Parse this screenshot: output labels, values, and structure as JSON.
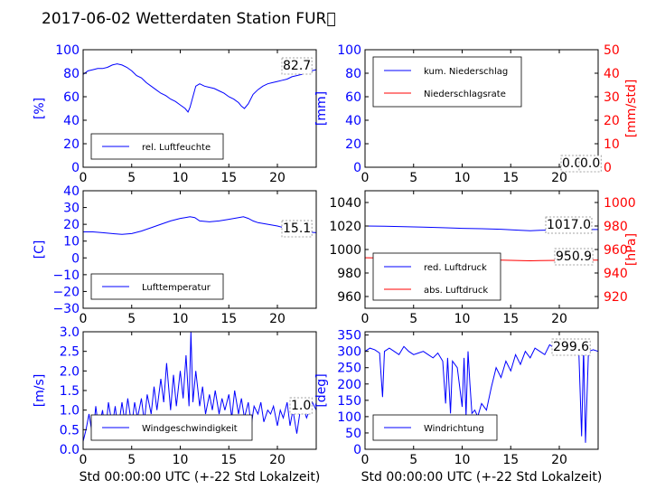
{
  "figure_title": "2017-06-02 Wetterdaten Station FUR\u0000",
  "colors": {
    "left_axis": "#0000ff",
    "right_axis": "#ff0000",
    "black": "#000000"
  },
  "chart_data": [
    {
      "id": "humidity",
      "type": "line",
      "xlim": [
        0,
        24
      ],
      "ylim": [
        0,
        100
      ],
      "xticks": [
        "0",
        "5",
        "10",
        "15",
        "20"
      ],
      "yticks": [
        "0",
        "20",
        "40",
        "60",
        "80",
        "100"
      ],
      "ylabel": "[%]",
      "xlabel": "",
      "last_value": "82.7",
      "legend": [
        {
          "label": "rel. Luftfeuchte",
          "color": "#0000ff"
        }
      ],
      "series": [
        {
          "name": "rel. Luftfeuchte",
          "color": "#0000ff",
          "x": [
            0,
            0.5,
            1,
            1.5,
            2,
            2.5,
            3,
            3.5,
            4,
            4.5,
            5,
            5.5,
            6,
            6.5,
            7,
            7.5,
            8,
            8.5,
            9,
            9.5,
            10,
            10.5,
            10.8,
            11,
            11.3,
            11.6,
            12,
            12.5,
            13,
            13.5,
            14,
            14.5,
            15,
            15.5,
            16,
            16.3,
            16.6,
            17,
            17.5,
            18,
            18.5,
            19,
            19.5,
            20,
            20.5,
            21,
            21.5,
            22,
            22.5,
            23,
            23.5,
            24
          ],
          "y": [
            79,
            82,
            83,
            84,
            84,
            85,
            87,
            88,
            87,
            85,
            82,
            78,
            76,
            72,
            69,
            66,
            63,
            61,
            58,
            56,
            53,
            50,
            47,
            51,
            60,
            69,
            71,
            69,
            68,
            67,
            65,
            63,
            60,
            58,
            55,
            52,
            50,
            54,
            62,
            66,
            69,
            71,
            72,
            73,
            74,
            75,
            77,
            78,
            79,
            81,
            82,
            83
          ]
        }
      ]
    },
    {
      "id": "rain",
      "type": "line",
      "xlim": [
        0,
        24
      ],
      "ylim": [
        0,
        100
      ],
      "ylim_right": [
        0,
        50
      ],
      "xticks": [
        "0",
        "5",
        "10",
        "15",
        "20"
      ],
      "yticks": [
        "0",
        "20",
        "40",
        "60",
        "80",
        "100"
      ],
      "yticks_right": [
        "0",
        "10",
        "20",
        "30",
        "40",
        "50"
      ],
      "ylabel": "[mm]",
      "ylabel_right": "[mm/std]",
      "last_value": "0.0",
      "last_value_right": "0.0",
      "legend": [
        {
          "label": "kum. Niederschlag",
          "color": "#0000ff"
        },
        {
          "label": "Niederschlagsrate",
          "color": "#ff0000"
        }
      ],
      "series": [
        {
          "name": "kum. Niederschlag",
          "color": "#0000ff",
          "x": [
            0,
            24
          ],
          "y": [
            0,
            0
          ]
        },
        {
          "name": "Niederschlagsrate",
          "color": "#ff0000",
          "x": [
            0,
            24
          ],
          "y": [
            0,
            0
          ],
          "axis": "right"
        }
      ]
    },
    {
      "id": "temperature",
      "type": "line",
      "xlim": [
        0,
        24
      ],
      "ylim": [
        -30,
        40
      ],
      "xticks": [
        "0",
        "5",
        "10",
        "15",
        "20"
      ],
      "yticks": [
        "−30",
        "−20",
        "−10",
        "0",
        "10",
        "20",
        "30",
        "40"
      ],
      "ylabel": "[C]",
      "last_value": "15.1",
      "legend": [
        {
          "label": "Lufttemperatur",
          "color": "#0000ff"
        }
      ],
      "series": [
        {
          "name": "Lufttemperatur",
          "color": "#0000ff",
          "x": [
            0,
            1,
            2,
            3,
            4,
            5,
            6,
            7,
            8,
            9,
            10,
            10.5,
            11,
            11.5,
            12,
            13,
            14,
            15,
            16,
            16.5,
            17,
            17.5,
            18,
            19,
            20,
            21,
            22,
            23,
            24
          ],
          "y": [
            15.5,
            15.5,
            15,
            14.5,
            14,
            14.5,
            16,
            18,
            20,
            22,
            23.5,
            24,
            24.5,
            24,
            22,
            21.5,
            22,
            23,
            24,
            24.5,
            23.5,
            22,
            21,
            20,
            19,
            17.5,
            16.5,
            15.5,
            15
          ]
        }
      ]
    },
    {
      "id": "pressure",
      "type": "line",
      "xlim": [
        0,
        24
      ],
      "ylim": [
        950,
        1050
      ],
      "ylim_right": [
        910,
        1010
      ],
      "xticks": [
        "0",
        "5",
        "10",
        "15",
        "20"
      ],
      "yticks": [
        "960",
        "980",
        "1000",
        "1020",
        "1040"
      ],
      "yticks_right": [
        "920",
        "940",
        "960",
        "980",
        "1000"
      ],
      "ylabel_right": "[hPa]",
      "last_value": "1017.0",
      "last_value_right": "950.9",
      "legend": [
        {
          "label": "red. Luftdruck",
          "color": "#0000ff"
        },
        {
          "label": "abs. Luftdruck",
          "color": "#ff0000"
        }
      ],
      "series": [
        {
          "name": "red. Luftdruck",
          "color": "#0000ff",
          "x": [
            0,
            2,
            4,
            6,
            8,
            10,
            12,
            14,
            16,
            17,
            18,
            20,
            22,
            24
          ],
          "y": [
            1020,
            1019.8,
            1019.4,
            1019,
            1018.5,
            1018,
            1017.7,
            1017.2,
            1016.4,
            1016,
            1016.3,
            1016.8,
            1017,
            1017
          ]
        },
        {
          "name": "abs. Luftdruck",
          "color": "#ff0000",
          "axis": "right",
          "x": [
            0,
            2,
            4,
            6,
            8,
            10,
            12,
            14,
            16,
            17,
            18,
            20,
            22,
            24
          ],
          "y": [
            953,
            952.8,
            952.5,
            952.2,
            951.8,
            951.5,
            951.3,
            951,
            950.6,
            950.4,
            950.6,
            950.8,
            950.9,
            950.9
          ]
        }
      ]
    },
    {
      "id": "wind",
      "type": "line",
      "xlim": [
        0,
        24
      ],
      "ylim": [
        0,
        3
      ],
      "xticks": [
        "0",
        "5",
        "10",
        "15",
        "20"
      ],
      "yticks": [
        "0.0",
        "0.5",
        "1.0",
        "1.5",
        "2.0",
        "2.5",
        "3.0"
      ],
      "ylabel": "[m/s]",
      "xlabel": "Std 00:00:00 UTC (+-22 Std Lokalzeit)",
      "last_value": "1.0",
      "legend": [
        {
          "label": "Windgeschwindigkeit",
          "color": "#0000ff"
        }
      ],
      "series": [
        {
          "name": "Windgeschwindigkeit",
          "color": "#0000ff",
          "x": [
            0,
            0.3,
            0.6,
            1,
            1.3,
            1.6,
            2,
            2.3,
            2.6,
            3,
            3.3,
            3.6,
            4,
            4.3,
            4.6,
            5,
            5.3,
            5.6,
            6,
            6.3,
            6.6,
            7,
            7.3,
            7.6,
            8,
            8.3,
            8.6,
            9,
            9.3,
            9.6,
            10,
            10.3,
            10.6,
            10.9,
            11.1,
            11.3,
            11.6,
            12,
            12.3,
            12.6,
            13,
            13.3,
            13.6,
            14,
            14.3,
            14.6,
            15,
            15.3,
            15.6,
            16,
            16.3,
            16.6,
            17,
            17.3,
            17.6,
            18,
            18.3,
            18.6,
            19,
            19.3,
            19.6,
            20,
            20.3,
            20.6,
            21,
            21.3,
            21.6,
            22,
            22.3,
            22.6,
            23,
            23.3,
            23.6,
            24
          ],
          "y": [
            0.2,
            0.5,
            0.9,
            0.3,
            1.1,
            0.5,
            1.0,
            0.4,
            1.2,
            0.6,
            1.1,
            0.5,
            1.2,
            0.7,
            1.3,
            0.6,
            1.2,
            0.8,
            1.3,
            0.7,
            1.4,
            0.9,
            1.6,
            1.0,
            1.8,
            1.2,
            2.2,
            1.0,
            1.9,
            1.1,
            2.0,
            1.3,
            2.4,
            1.1,
            3.0,
            1.2,
            2.0,
            1.1,
            1.6,
            0.9,
            1.4,
            1.0,
            1.5,
            0.9,
            1.3,
            1.0,
            1.4,
            0.8,
            1.5,
            0.9,
            1.3,
            0.8,
            1.2,
            0.6,
            1.1,
            0.9,
            1.2,
            0.7,
            1.0,
            0.9,
            1.1,
            0.6,
            1.0,
            0.8,
            1.2,
            0.6,
            1.0,
            0.4,
            0.9,
            1.1,
            0.8,
            1.0,
            1.2,
            1.0
          ]
        }
      ]
    },
    {
      "id": "direction",
      "type": "line",
      "xlim": [
        0,
        24
      ],
      "ylim": [
        0,
        360
      ],
      "xticks": [
        "0",
        "5",
        "10",
        "15",
        "20"
      ],
      "yticks": [
        "0",
        "50",
        "100",
        "150",
        "200",
        "250",
        "300",
        "350"
      ],
      "ylabel": "[deg]",
      "xlabel": "Std 00:00:00 UTC (+-22 Std Lokalzeit)",
      "last_value": "299.6",
      "legend": [
        {
          "label": "Windrichtung",
          "color": "#0000ff"
        }
      ],
      "series": [
        {
          "name": "Windrichtung",
          "color": "#0000ff",
          "x": [
            0,
            0.5,
            1,
            1.5,
            1.8,
            2,
            2.5,
            3,
            3.5,
            4,
            4.5,
            5,
            5.5,
            6,
            6.5,
            7,
            7.5,
            8,
            8.3,
            8.5,
            8.8,
            9,
            9.5,
            10,
            10.2,
            10.4,
            10.6,
            10.8,
            11,
            11.3,
            11.6,
            12,
            12.5,
            13,
            13.5,
            14,
            14.5,
            15,
            15.5,
            16,
            16.5,
            17,
            17.5,
            18,
            18.5,
            19,
            19.5,
            20,
            20.5,
            21,
            21.5,
            22,
            22.3,
            22.5,
            22.7,
            23,
            23.5,
            24
          ],
          "y": [
            300,
            310,
            305,
            295,
            160,
            300,
            310,
            300,
            290,
            315,
            300,
            290,
            295,
            300,
            290,
            280,
            295,
            270,
            140,
            280,
            110,
            270,
            250,
            130,
            280,
            100,
            300,
            200,
            110,
            120,
            100,
            140,
            120,
            190,
            250,
            220,
            270,
            240,
            290,
            260,
            300,
            280,
            310,
            300,
            290,
            320,
            310,
            300,
            320,
            305,
            300,
            310,
            40,
            310,
            20,
            300,
            305,
            300
          ]
        }
      ]
    }
  ]
}
